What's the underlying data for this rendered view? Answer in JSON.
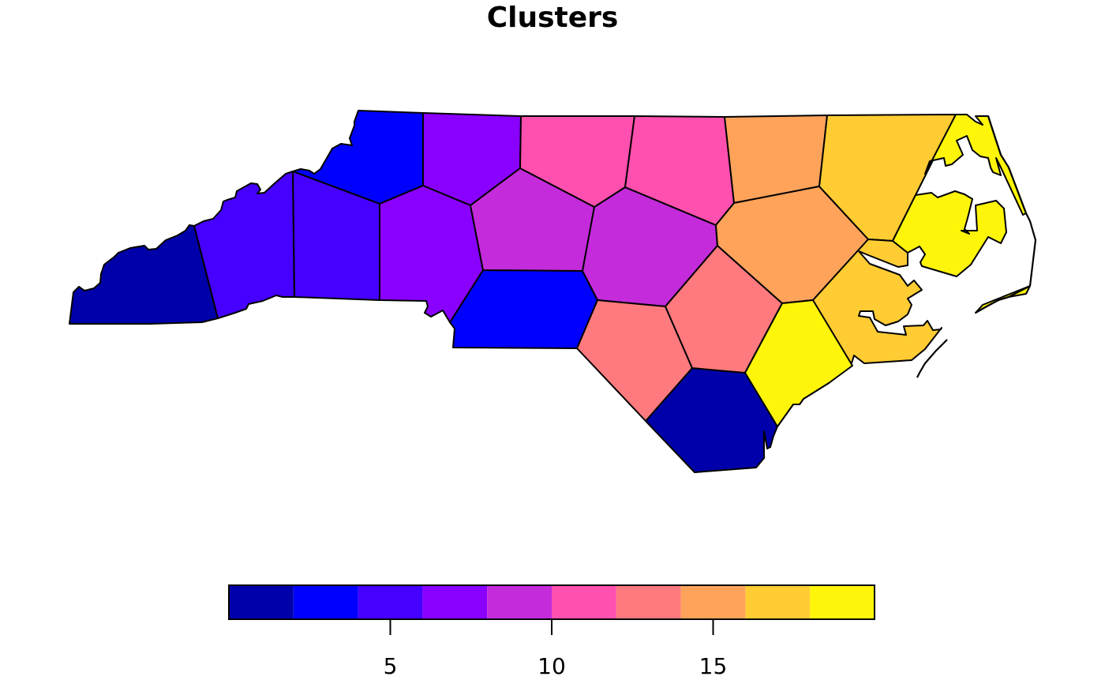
{
  "map": {
    "title": "Clusters",
    "palette": [
      "#0000AA",
      "#0000FF",
      "#4500FF",
      "#8A00FF",
      "#C42BDB",
      "#FF50AF",
      "#FF7A7E",
      "#FFA35B",
      "#FFCC33",
      "#FFF50A"
    ]
  },
  "legend": {
    "range": [
      0,
      20
    ],
    "breaks": [
      0,
      2,
      4,
      6,
      8,
      10,
      12,
      14,
      16,
      18,
      20
    ],
    "ticks": [
      5,
      10,
      15
    ],
    "tick_labels": [
      "5",
      "10",
      "15"
    ]
  },
  "regions": [
    {
      "name": "region-cluster-1-west",
      "value": 1
    },
    {
      "name": "region-cluster-1-south",
      "value": 1
    },
    {
      "name": "region-cluster-2-north",
      "value": 3
    },
    {
      "name": "region-cluster-2-south",
      "value": 3
    },
    {
      "name": "region-cluster-3-west",
      "value": 5
    },
    {
      "name": "region-cluster-3-east",
      "value": 5
    },
    {
      "name": "region-cluster-4-north",
      "value": 7
    },
    {
      "name": "region-cluster-4-central",
      "value": 7
    },
    {
      "name": "region-cluster-5-west",
      "value": 9
    },
    {
      "name": "region-cluster-5-east",
      "value": 9
    },
    {
      "name": "region-cluster-6-west",
      "value": 11
    },
    {
      "name": "region-cluster-6-east",
      "value": 11
    },
    {
      "name": "region-cluster-7-west",
      "value": 13
    },
    {
      "name": "region-cluster-7-east",
      "value": 13
    },
    {
      "name": "region-cluster-8-north",
      "value": 15
    },
    {
      "name": "region-cluster-8-central",
      "value": 15
    },
    {
      "name": "region-cluster-9-north",
      "value": 17
    },
    {
      "name": "region-cluster-9-coast",
      "value": 17
    },
    {
      "name": "region-cluster-10-outer-banks",
      "value": 19
    },
    {
      "name": "region-cluster-10-peninsula",
      "value": 19
    },
    {
      "name": "region-cluster-10-south",
      "value": 19
    },
    {
      "name": "region-cluster-10-islet",
      "value": 19
    }
  ]
}
